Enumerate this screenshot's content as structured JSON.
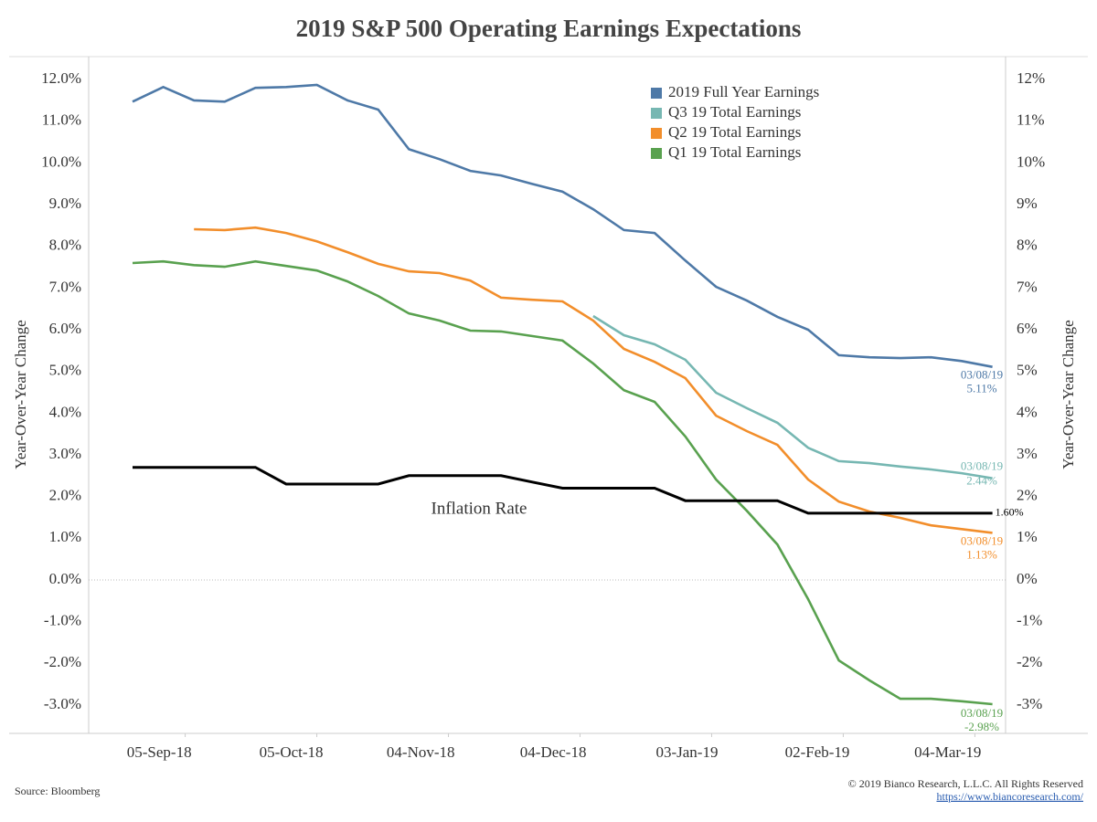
{
  "chart_data": {
    "type": "line",
    "title": "2019 S&P 500 Operating Earnings Expectations",
    "y_label": "Year-Over-Year Change",
    "y2_label": "Year-Over-Year Change",
    "source": "Source: Bloomberg",
    "copyright": "© 2019 Bianco Research, L.L.C. All Rights Reserved",
    "url": "https://www.biancoresearch.com/",
    "x": [
      "2018-08-24",
      "2018-08-31",
      "2018-09-07",
      "2018-09-14",
      "2018-09-21",
      "2018-09-28",
      "2018-10-05",
      "2018-10-12",
      "2018-10-19",
      "2018-10-26",
      "2018-11-02",
      "2018-11-09",
      "2018-11-16",
      "2018-11-23",
      "2018-11-30",
      "2018-12-07",
      "2018-12-14",
      "2018-12-21",
      "2018-12-28",
      "2019-01-04",
      "2019-01-11",
      "2019-01-18",
      "2019-01-25",
      "2019-02-01",
      "2019-02-08",
      "2019-02-15",
      "2019-02-22",
      "2019-03-01",
      "2019-03-08"
    ],
    "xlim": [
      "2018-08-14",
      "2019-03-11"
    ],
    "xticks": [
      {
        "value": "2018-09-05",
        "label": "05-Sep-18"
      },
      {
        "value": "2018-10-05",
        "label": "05-Oct-18"
      },
      {
        "value": "2018-11-04",
        "label": "04-Nov-18"
      },
      {
        "value": "2018-12-04",
        "label": "04-Dec-18"
      },
      {
        "value": "2019-01-03",
        "label": "03-Jan-19"
      },
      {
        "value": "2019-02-02",
        "label": "02-Feb-19"
      },
      {
        "value": "2019-03-04",
        "label": "04-Mar-19"
      }
    ],
    "ylim": [
      -3.68,
      12.55
    ],
    "yticks": [
      {
        "value": -3,
        "label": "-3.0%"
      },
      {
        "value": -2,
        "label": "-2.0%"
      },
      {
        "value": -1,
        "label": "-1.0%"
      },
      {
        "value": 0,
        "label": "0.0%"
      },
      {
        "value": 1,
        "label": "1.0%"
      },
      {
        "value": 2,
        "label": "2.0%"
      },
      {
        "value": 3,
        "label": "3.0%"
      },
      {
        "value": 4,
        "label": "4.0%"
      },
      {
        "value": 5,
        "label": "5.0%"
      },
      {
        "value": 6,
        "label": "6.0%"
      },
      {
        "value": 7,
        "label": "7.0%"
      },
      {
        "value": 8,
        "label": "8.0%"
      },
      {
        "value": 9,
        "label": "9.0%"
      },
      {
        "value": 10,
        "label": "10.0%"
      },
      {
        "value": 11,
        "label": "11.0%"
      },
      {
        "value": 12,
        "label": "12.0%"
      }
    ],
    "y2lim": [
      -3.68,
      12.55
    ],
    "y2ticks": [
      {
        "value": -3,
        "label": "-3%"
      },
      {
        "value": -2,
        "label": "-2%"
      },
      {
        "value": -1,
        "label": "-1%"
      },
      {
        "value": 0,
        "label": "0%"
      },
      {
        "value": 1,
        "label": "1%"
      },
      {
        "value": 2,
        "label": "2%"
      },
      {
        "value": 3,
        "label": "3%"
      },
      {
        "value": 4,
        "label": "4%"
      },
      {
        "value": 5,
        "label": "5%"
      },
      {
        "value": 6,
        "label": "6%"
      },
      {
        "value": 7,
        "label": "7%"
      },
      {
        "value": 8,
        "label": "8%"
      },
      {
        "value": 9,
        "label": "9%"
      },
      {
        "value": 10,
        "label": "10%"
      },
      {
        "value": 11,
        "label": "11%"
      },
      {
        "value": 12,
        "label": "12%"
      }
    ],
    "zero_line": true,
    "series": [
      {
        "name": "2019 Full Year Earnings",
        "color": "#4e79a7",
        "in_legend": true,
        "date_label": "03/08/19",
        "values": [
          11.47,
          11.82,
          11.5,
          11.47,
          11.8,
          11.82,
          11.87,
          11.5,
          11.28,
          10.33,
          10.09,
          9.81,
          9.7,
          9.5,
          9.31,
          8.89,
          8.39,
          8.32,
          7.66,
          7.03,
          6.7,
          6.31,
          6.0,
          5.39,
          5.34,
          5.32,
          5.34,
          5.25,
          5.11
        ],
        "value_labels": [
          null,
          null,
          null,
          null,
          null,
          null,
          null,
          null,
          null,
          null,
          null,
          null,
          null,
          null,
          null,
          null,
          null,
          null,
          null,
          null,
          null,
          null,
          null,
          null,
          null,
          null,
          null,
          null,
          "5.11%"
        ]
      },
      {
        "name": "Q3 19 Total Earnings",
        "color": "#76b7b2",
        "in_legend": true,
        "date_label": "03/08/19",
        "values": [
          null,
          null,
          null,
          null,
          null,
          null,
          null,
          null,
          null,
          null,
          null,
          null,
          null,
          null,
          null,
          6.33,
          5.87,
          5.65,
          5.28,
          4.49,
          4.12,
          3.77,
          3.17,
          2.85,
          2.8,
          2.72,
          2.65,
          2.56,
          2.44
        ],
        "value_labels": [
          null,
          null,
          null,
          null,
          null,
          null,
          null,
          null,
          null,
          null,
          null,
          null,
          null,
          null,
          null,
          null,
          null,
          null,
          null,
          null,
          null,
          null,
          null,
          null,
          null,
          null,
          null,
          null,
          "2.44%"
        ]
      },
      {
        "name": "Q2 19 Total Earnings",
        "color": "#f28e2b",
        "in_legend": true,
        "date_label": "03/08/19",
        "values": [
          null,
          null,
          8.41,
          8.39,
          8.45,
          8.32,
          8.12,
          7.86,
          7.58,
          7.4,
          7.36,
          7.18,
          6.77,
          6.72,
          6.68,
          6.22,
          5.54,
          5.23,
          4.84,
          3.94,
          3.57,
          3.24,
          2.41,
          1.88,
          1.64,
          1.49,
          1.31,
          1.22,
          1.13
        ],
        "value_labels": [
          null,
          null,
          null,
          null,
          null,
          null,
          null,
          null,
          null,
          null,
          null,
          null,
          null,
          null,
          null,
          null,
          null,
          null,
          null,
          null,
          null,
          null,
          null,
          null,
          null,
          null,
          null,
          null,
          "1.13%"
        ]
      },
      {
        "name": "Q1 19 Total Earnings",
        "color": "#59a14f",
        "in_legend": true,
        "date_label": "03/08/19",
        "values": [
          7.6,
          7.64,
          7.55,
          7.51,
          7.64,
          7.53,
          7.42,
          7.16,
          6.81,
          6.39,
          6.22,
          5.98,
          5.96,
          5.85,
          5.74,
          5.19,
          4.55,
          4.27,
          3.44,
          2.41,
          1.66,
          0.85,
          -0.46,
          -1.93,
          -2.41,
          -2.85,
          -2.85,
          -2.91,
          -2.98
        ],
        "value_labels": [
          null,
          null,
          null,
          null,
          null,
          null,
          null,
          null,
          null,
          null,
          null,
          null,
          null,
          null,
          null,
          null,
          null,
          null,
          null,
          null,
          null,
          null,
          null,
          null,
          null,
          null,
          null,
          null,
          "-2.98%"
        ]
      },
      {
        "name": "Inflation Rate",
        "color": "#000000",
        "in_legend": false,
        "values": [
          2.7,
          2.7,
          2.7,
          2.7,
          2.7,
          2.3,
          2.3,
          2.3,
          2.3,
          2.5,
          2.5,
          2.5,
          2.5,
          2.35,
          2.2,
          2.2,
          2.2,
          2.2,
          1.9,
          1.9,
          1.9,
          1.9,
          1.6,
          1.6,
          1.6,
          1.6,
          1.6,
          1.6,
          1.6
        ],
        "value_labels": [
          null,
          null,
          null,
          null,
          null,
          null,
          null,
          null,
          null,
          null,
          null,
          null,
          null,
          null,
          null,
          null,
          null,
          null,
          null,
          null,
          null,
          null,
          null,
          null,
          null,
          null,
          null,
          null,
          "1.60%"
        ]
      }
    ]
  }
}
